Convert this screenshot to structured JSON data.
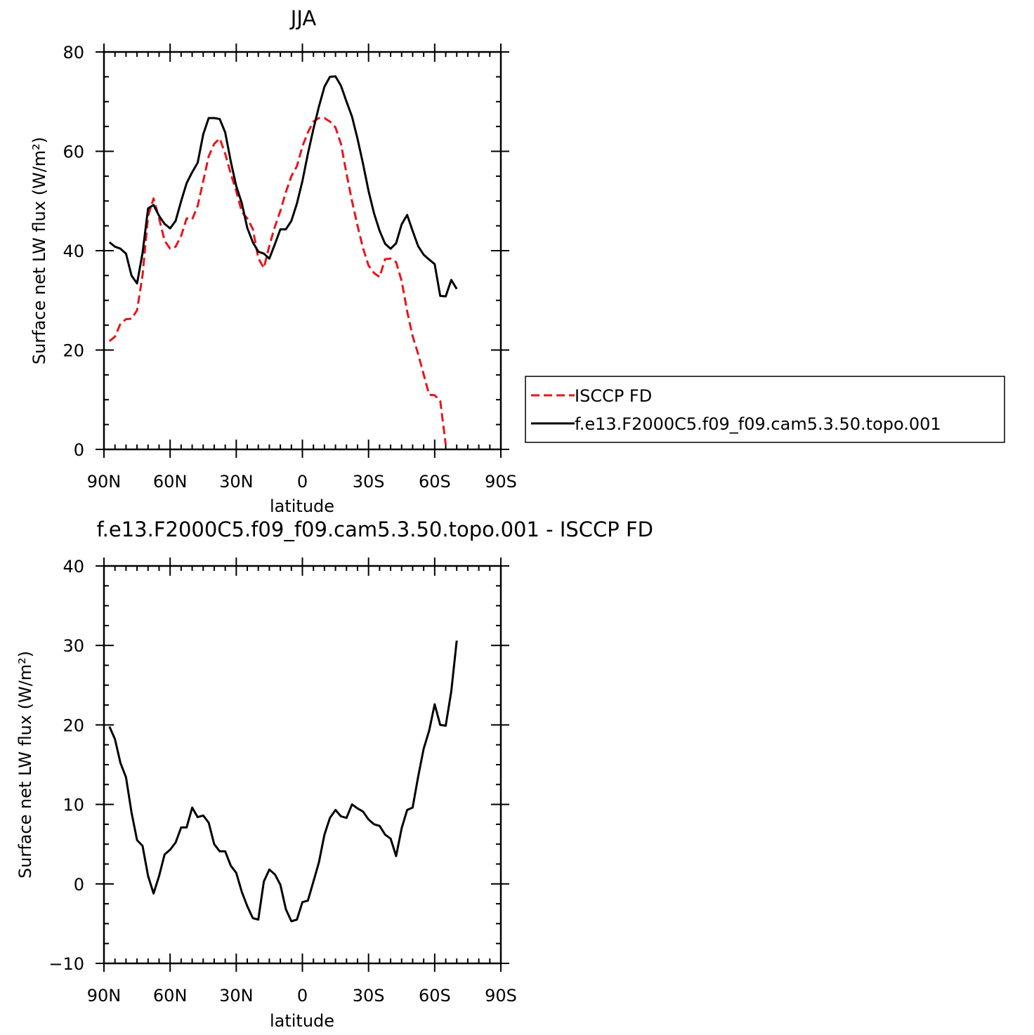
{
  "chart_data": [
    {
      "type": "line",
      "title": "JJA",
      "xlabel": "latitude",
      "ylabel": "Surface net LW flux (W/m²)",
      "xlim": [
        90,
        -90
      ],
      "ylim": [
        0,
        80
      ],
      "x_ticks": [
        90,
        60,
        30,
        0,
        -30,
        -60,
        -90
      ],
      "x_tick_labels": [
        "90N",
        "60N",
        "30N",
        "0",
        "30S",
        "60S",
        "90S"
      ],
      "y_ticks": [
        0,
        20,
        40,
        60,
        80
      ],
      "y_tick_labels": [
        "0",
        "20",
        "40",
        "60",
        "80"
      ],
      "legend": {
        "placement": "right",
        "entries": [
          "ISCCP FD",
          "f.e13.F2000C5.f09_f09.cam5.3.50.topo.001"
        ]
      },
      "series": [
        {
          "name": "ISCCP FD",
          "color": "#e8141a",
          "dash": "dashed",
          "points": [
            [
              87.5,
              21.8
            ],
            [
              85,
              22.7
            ],
            [
              82.5,
              25.3
            ],
            [
              80,
              26.2
            ],
            [
              77.5,
              26.3
            ],
            [
              75,
              28
            ],
            [
              72.5,
              35
            ],
            [
              70,
              47
            ],
            [
              67.5,
              50.5
            ],
            [
              65,
              46.5
            ],
            [
              62.5,
              42
            ],
            [
              60,
              40.4
            ],
            [
              57.5,
              40.8
            ],
            [
              55,
              43
            ],
            [
              52.5,
              46.5
            ],
            [
              50,
              46.3
            ],
            [
              47.5,
              49
            ],
            [
              45,
              54
            ],
            [
              42.5,
              59
            ],
            [
              40,
              61.5
            ],
            [
              37.5,
              62.6
            ],
            [
              35,
              59.5
            ],
            [
              32.5,
              55.5
            ],
            [
              30,
              52
            ],
            [
              27.5,
              47.8
            ],
            [
              25,
              46.5
            ],
            [
              22.5,
              44.4
            ],
            [
              20,
              38.5
            ],
            [
              17.5,
              36.5
            ],
            [
              15,
              41
            ],
            [
              12.5,
              44.8
            ],
            [
              10,
              48
            ],
            [
              7.5,
              51.8
            ],
            [
              5,
              55
            ],
            [
              2.5,
              57
            ],
            [
              0,
              61
            ],
            [
              -2.5,
              63.8
            ],
            [
              -5,
              66
            ],
            [
              -7.5,
              66.7
            ],
            [
              -10,
              66.7
            ],
            [
              -12.5,
              66
            ],
            [
              -15,
              64.8
            ],
            [
              -17.5,
              61.5
            ],
            [
              -20,
              55.5
            ],
            [
              -22.5,
              50
            ],
            [
              -25,
              45
            ],
            [
              -27.5,
              40.5
            ],
            [
              -30,
              37
            ],
            [
              -32.5,
              35.5
            ],
            [
              -35,
              34.7
            ],
            [
              -37.5,
              38.3
            ],
            [
              -40,
              38.4
            ],
            [
              -42.5,
              37.7
            ],
            [
              -45,
              33.9
            ],
            [
              -47.5,
              27.8
            ],
            [
              -50,
              22.8
            ],
            [
              -52.5,
              19.2
            ],
            [
              -55,
              15.1
            ],
            [
              -57.5,
              11
            ],
            [
              -60,
              10.9
            ],
            [
              -62.5,
              9.8
            ],
            [
              -65,
              1
            ]
          ]
        },
        {
          "name": "f.e13.F2000C5.f09_f09.cam5.3.50.topo.001",
          "color": "#000000",
          "dash": "solid",
          "points": [
            [
              87.5,
              41.7
            ],
            [
              85,
              40.8
            ],
            [
              82.5,
              40.4
            ],
            [
              80,
              39.4
            ],
            [
              77.5,
              35
            ],
            [
              75,
              33.4
            ],
            [
              72.5,
              39.5
            ],
            [
              70,
              48.5
            ],
            [
              67.5,
              49.2
            ],
            [
              65,
              47
            ],
            [
              62.5,
              45.4
            ],
            [
              60,
              44.5
            ],
            [
              57.5,
              46
            ],
            [
              55,
              50
            ],
            [
              52.5,
              53.6
            ],
            [
              50,
              55.8
            ],
            [
              47.5,
              57.7
            ],
            [
              45,
              63.4
            ],
            [
              42.5,
              66.7
            ],
            [
              40,
              66.7
            ],
            [
              37.5,
              66.5
            ],
            [
              35,
              63.8
            ],
            [
              32.5,
              58
            ],
            [
              30,
              53
            ],
            [
              27.5,
              49.6
            ],
            [
              25,
              44.6
            ],
            [
              22.5,
              41.7
            ],
            [
              20,
              39.8
            ],
            [
              17.5,
              39.4
            ],
            [
              15,
              38.4
            ],
            [
              12.5,
              41.3
            ],
            [
              10,
              44.3
            ],
            [
              7.5,
              44.3
            ],
            [
              5,
              46
            ],
            [
              2.5,
              49.5
            ],
            [
              0,
              54
            ],
            [
              -2.5,
              59.5
            ],
            [
              -5,
              64.5
            ],
            [
              -7.5,
              69
            ],
            [
              -10,
              73
            ],
            [
              -12.5,
              75
            ],
            [
              -15,
              75.1
            ],
            [
              -17.5,
              73.2
            ],
            [
              -20,
              70
            ],
            [
              -22.5,
              67
            ],
            [
              -25,
              62.5
            ],
            [
              -27.5,
              57.5
            ],
            [
              -30,
              52
            ],
            [
              -32.5,
              47.5
            ],
            [
              -35,
              44
            ],
            [
              -37.5,
              41.4
            ],
            [
              -40,
              40.4
            ],
            [
              -42.5,
              41.5
            ],
            [
              -45,
              45.3
            ],
            [
              -47.5,
              47.2
            ],
            [
              -50,
              44
            ],
            [
              -52.5,
              40.9
            ],
            [
              -55,
              39.2
            ],
            [
              -57.5,
              38.2
            ],
            [
              -60,
              37.3
            ],
            [
              -62.5,
              30.9
            ],
            [
              -65,
              30.8
            ],
            [
              -67.5,
              34.1
            ],
            [
              -70,
              32.3
            ]
          ]
        }
      ]
    },
    {
      "type": "line",
      "title": "f.e13.F2000C5.f09_f09.cam5.3.50.topo.001 - ISCCP FD",
      "xlabel": "latitude",
      "ylabel": "Surface net LW flux (W/m²)",
      "xlim": [
        90,
        -90
      ],
      "ylim": [
        -10,
        40
      ],
      "x_ticks": [
        90,
        60,
        30,
        0,
        -30,
        -60,
        -90
      ],
      "x_tick_labels": [
        "90N",
        "60N",
        "30N",
        "0",
        "30S",
        "60S",
        "90S"
      ],
      "y_ticks": [
        -10,
        0,
        10,
        20,
        30,
        40
      ],
      "y_tick_labels": [
        "−10",
        "0",
        "10",
        "20",
        "30",
        "40"
      ],
      "series": [
        {
          "color": "#000000",
          "dash": "solid",
          "points": [
            [
              87.5,
              19.8
            ],
            [
              85,
              18.2
            ],
            [
              82.5,
              15.2
            ],
            [
              80,
              13.4
            ],
            [
              77.5,
              9
            ],
            [
              75,
              5.5
            ],
            [
              72.5,
              4.8
            ],
            [
              70,
              1
            ],
            [
              67.5,
              -1.2
            ],
            [
              65,
              1
            ],
            [
              62.5,
              3.7
            ],
            [
              60,
              4.3
            ],
            [
              57.5,
              5.2
            ],
            [
              55,
              7.1
            ],
            [
              52.5,
              7.1
            ],
            [
              50,
              9.6
            ],
            [
              47.5,
              8.4
            ],
            [
              45,
              8.6
            ],
            [
              42.5,
              7.7
            ],
            [
              40,
              5
            ],
            [
              37.5,
              4.1
            ],
            [
              35,
              4.1
            ],
            [
              32.5,
              2.3
            ],
            [
              30,
              1.4
            ],
            [
              27.5,
              -1
            ],
            [
              25,
              -2.8
            ],
            [
              22.5,
              -4.3
            ],
            [
              20,
              -4.5
            ],
            [
              17.5,
              0.3
            ],
            [
              15,
              1.8
            ],
            [
              12.5,
              1.2
            ],
            [
              10,
              -0.1
            ],
            [
              7.5,
              -3.2
            ],
            [
              5,
              -4.7
            ],
            [
              2.5,
              -4.5
            ],
            [
              0,
              -2.3
            ],
            [
              -2.5,
              -2.1
            ],
            [
              -5,
              0.3
            ],
            [
              -7.5,
              2.7
            ],
            [
              -10,
              6.2
            ],
            [
              -12.5,
              8.3
            ],
            [
              -15,
              9.3
            ],
            [
              -17.5,
              8.5
            ],
            [
              -20,
              8.3
            ],
            [
              -22.5,
              10
            ],
            [
              -25,
              9.5
            ],
            [
              -27.5,
              9.1
            ],
            [
              -30,
              8.1
            ],
            [
              -32.5,
              7.5
            ],
            [
              -35,
              7.3
            ],
            [
              -37.5,
              6.2
            ],
            [
              -40,
              5.7
            ],
            [
              -42.5,
              3.5
            ],
            [
              -45,
              7
            ],
            [
              -47.5,
              9.3
            ],
            [
              -50,
              9.6
            ],
            [
              -52.5,
              13.5
            ],
            [
              -55,
              17
            ],
            [
              -57.5,
              19.3
            ],
            [
              -60,
              22.6
            ],
            [
              -62.5,
              20
            ],
            [
              -65,
              19.9
            ],
            [
              -67.5,
              24.2
            ],
            [
              -70,
              30.6
            ]
          ]
        }
      ]
    }
  ]
}
